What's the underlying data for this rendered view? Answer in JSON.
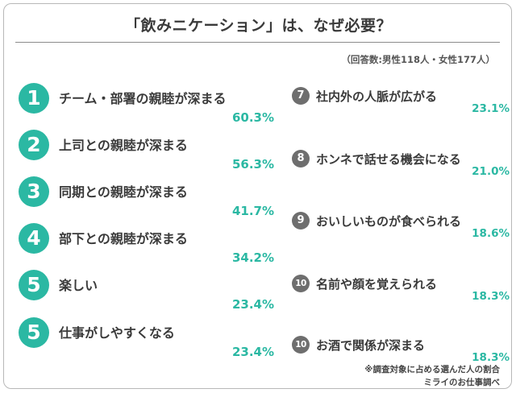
{
  "title": "「飲みニケーション」は、なぜ必要？",
  "note": "（回答数:男性118人・女性177人）",
  "footnote_1": "※調査対象に占める選んだ人の割合",
  "footnote_2": "ミライのお仕事調べ",
  "chart_data": {
    "type": "table",
    "title": "「飲みニケーション」は、なぜ必要？",
    "unit": "%",
    "accent_color": "#2bb8a3",
    "secondary_color": "#6e6e6e",
    "items": [
      {
        "rank": "1",
        "label": "チーム・部署の親睦が深まる",
        "value": 60.3,
        "display": "60.3%"
      },
      {
        "rank": "2",
        "label": "上司との親睦が深まる",
        "value": 56.3,
        "display": "56.3%"
      },
      {
        "rank": "3",
        "label": "同期との親睦が深まる",
        "value": 41.7,
        "display": "41.7%"
      },
      {
        "rank": "4",
        "label": "部下との親睦が深まる",
        "value": 34.2,
        "display": "34.2%"
      },
      {
        "rank": "5",
        "label": "楽しい",
        "value": 23.4,
        "display": "23.4%"
      },
      {
        "rank": "5",
        "label": "仕事がしやすくなる",
        "value": 23.4,
        "display": "23.4%"
      },
      {
        "rank": "7",
        "label": "社内外の人脈が広がる",
        "value": 23.1,
        "display": "23.1%"
      },
      {
        "rank": "8",
        "label": "ホンネで話せる機会になる",
        "value": 21.0,
        "display": "21.0%"
      },
      {
        "rank": "9",
        "label": "おいしいものが食べられる",
        "value": 18.6,
        "display": "18.6%"
      },
      {
        "rank": "10",
        "label": "名前や顔を覚えられる",
        "value": 18.3,
        "display": "18.3%"
      },
      {
        "rank": "10",
        "label": "お酒で関係が深まる",
        "value": 18.3,
        "display": "18.3%"
      }
    ]
  }
}
